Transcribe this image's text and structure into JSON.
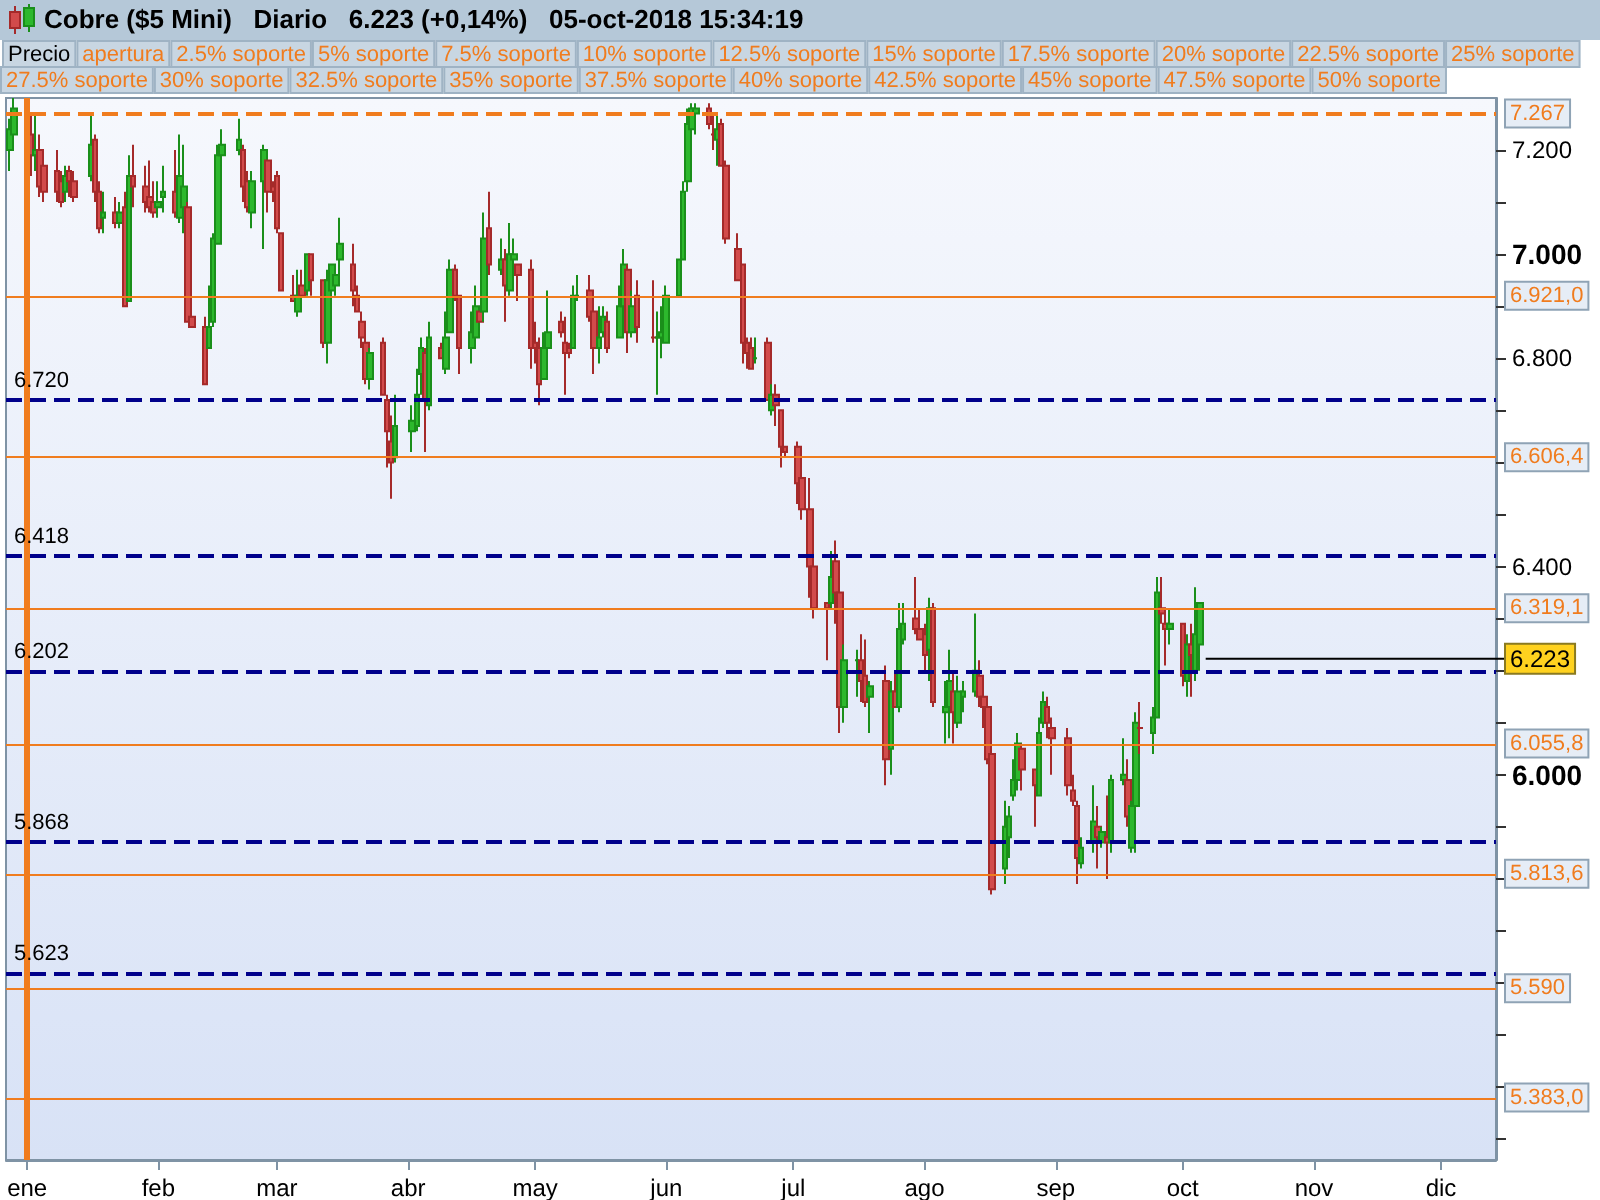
{
  "chart_data": {
    "type": "candlestick",
    "title": "Cobre ($5 Mini)   Diario   6.223 (+0,14%)   05-oct-2018 15:34:19",
    "annotations": [
      "Precio",
      "apertura",
      "2.5% soporte",
      "5% soporte",
      "7.5% soporte",
      "10% soporte",
      "12.5% soporte",
      "15% soporte",
      "17.5% soporte",
      "20% soporte",
      "22.5% soporte",
      "25% soporte",
      "27.5% soporte",
      "30% soporte",
      "32.5% soporte",
      "35% soporte",
      "37.5% soporte",
      "40% soporte",
      "42.5% soporte",
      "45% soporte",
      "47.5% soporte",
      "50% soporte",
      {
        "text": "6.223",
        "x": "2018-10-05",
        "y": 6.223
      }
    ],
    "xlim": [
      "2017-12-27",
      "2018-12-14"
    ],
    "xticks": [
      {
        "value": "2018-01-01",
        "label": "ene"
      },
      {
        "value": "2018-02-01",
        "label": "feb"
      },
      {
        "value": "2018-03-01",
        "label": "mar"
      },
      {
        "value": "2018-04-01",
        "label": "abr"
      },
      {
        "value": "2018-05-01",
        "label": "may"
      },
      {
        "value": "2018-06-01",
        "label": "jun"
      },
      {
        "value": "2018-07-01",
        "label": "jul"
      },
      {
        "value": "2018-08-01",
        "label": "ago"
      },
      {
        "value": "2018-09-01",
        "label": "sep"
      },
      {
        "value": "2018-10-01",
        "label": "oct"
      },
      {
        "value": "2018-11-01",
        "label": "nov"
      },
      {
        "value": "2018-12-01",
        "label": "dic"
      }
    ],
    "ylim": [
      5.26,
      7.3
    ],
    "yticks": [
      {
        "value": 5.3,
        "label": null
      },
      {
        "value": 5.4,
        "label": null
      },
      {
        "value": 5.5,
        "label": null
      },
      {
        "value": 5.6,
        "label": null
      },
      {
        "value": 5.7,
        "label": null
      },
      {
        "value": 5.8,
        "label": null
      },
      {
        "value": 5.9,
        "label": null
      },
      {
        "value": 6,
        "label": "6.000"
      },
      {
        "value": 6.1,
        "label": null
      },
      {
        "value": 6.2,
        "label": null
      },
      {
        "value": 6.3,
        "label": null
      },
      {
        "value": 6.4,
        "label": "6.400"
      },
      {
        "value": 6.5,
        "label": null
      },
      {
        "value": 6.6,
        "label": null
      },
      {
        "value": 6.7,
        "label": null
      },
      {
        "value": 6.8,
        "label": "6.800"
      },
      {
        "value": 6.9,
        "label": null
      },
      {
        "value": 7,
        "label": "7.000"
      },
      {
        "value": 7.1,
        "label": null
      },
      {
        "value": 7.2,
        "label": "7.200"
      }
    ],
    "ref_lines": [
      {
        "axis": "x",
        "value": "2018-01-01",
        "label": null,
        "color": "#f07c1e",
        "line_style": "solid"
      },
      {
        "axis": "y",
        "value": 7.267,
        "label": "7.267",
        "color": "#f07c1e",
        "line_style": "dashed"
      },
      {
        "axis": "y",
        "value": 6.921,
        "label": "6.921,0",
        "color": "#f07c1e",
        "line_style": "solid"
      },
      {
        "axis": "y",
        "value": 6.6064,
        "label": "6.606,4",
        "color": "#f07c1e",
        "line_style": "solid"
      },
      {
        "axis": "y",
        "value": 6.3191,
        "label": "6.319,1",
        "color": "#f07c1e",
        "line_style": "solid"
      },
      {
        "axis": "y",
        "value": 6.0558,
        "label": "6.055,8",
        "color": "#f07c1e",
        "line_style": "solid"
      },
      {
        "axis": "y",
        "value": 5.8136,
        "label": "5.813,6",
        "color": "#f07c1e",
        "line_style": "solid"
      },
      {
        "axis": "y",
        "value": 5.59,
        "label": "5.590",
        "color": "#f07c1e",
        "line_style": "solid"
      },
      {
        "axis": "y",
        "value": 5.383,
        "label": "5.383,0",
        "color": "#f07c1e",
        "line_style": "solid"
      },
      {
        "axis": "y",
        "value": 6.72,
        "label": "6.720",
        "color": "#00008b",
        "line_style": "dashed"
      },
      {
        "axis": "y",
        "value": 6.418,
        "label": "6.418",
        "color": "#00008b",
        "line_style": "dashed"
      },
      {
        "axis": "y",
        "value": 6.202,
        "label": "6.202",
        "color": "#00008b",
        "line_style": "dashed"
      },
      {
        "axis": "y",
        "value": 5.868,
        "label": "5.868",
        "color": "#00008b",
        "line_style": "dashed"
      },
      {
        "axis": "y",
        "value": 5.623,
        "label": "5.623",
        "color": "#00008b",
        "line_style": "dashed"
      }
    ],
    "x": [
      "2017-12-28",
      "2017-12-29",
      "2018-01-02",
      "2018-01-03",
      "2018-01-04",
      "2018-01-05",
      "2018-01-08",
      "2018-01-09",
      "2018-01-10",
      "2018-01-11",
      "2018-01-12",
      "2018-01-16",
      "2018-01-17",
      "2018-01-18",
      "2018-01-19",
      "2018-01-22",
      "2018-01-23",
      "2018-01-24",
      "2018-01-25",
      "2018-01-26",
      "2018-01-29",
      "2018-01-30",
      "2018-01-31",
      "2018-02-01",
      "2018-02-02",
      "2018-02-05",
      "2018-02-06",
      "2018-02-07",
      "2018-02-08",
      "2018-02-09",
      "2018-02-12",
      "2018-02-13",
      "2018-02-14",
      "2018-02-15",
      "2018-02-16",
      "2018-02-20",
      "2018-02-21",
      "2018-02-22",
      "2018-02-23",
      "2018-02-26",
      "2018-02-27",
      "2018-02-28",
      "2018-03-01",
      "2018-03-02",
      "2018-03-05",
      "2018-03-06",
      "2018-03-07",
      "2018-03-08",
      "2018-03-09",
      "2018-03-12",
      "2018-03-13",
      "2018-03-14",
      "2018-03-15",
      "2018-03-16",
      "2018-03-19",
      "2018-03-20",
      "2018-03-21",
      "2018-03-22",
      "2018-03-23",
      "2018-03-26",
      "2018-03-27",
      "2018-03-28",
      "2018-03-29",
      "2018-04-02",
      "2018-04-03",
      "2018-04-04",
      "2018-04-05",
      "2018-04-06",
      "2018-04-09",
      "2018-04-10",
      "2018-04-11",
      "2018-04-12",
      "2018-04-13",
      "2018-04-16",
      "2018-04-17",
      "2018-04-18",
      "2018-04-19",
      "2018-04-20",
      "2018-04-23",
      "2018-04-24",
      "2018-04-25",
      "2018-04-26",
      "2018-04-27",
      "2018-04-30",
      "2018-05-01",
      "2018-05-02",
      "2018-05-03",
      "2018-05-04",
      "2018-05-07",
      "2018-05-08",
      "2018-05-09",
      "2018-05-10",
      "2018-05-11",
      "2018-05-14",
      "2018-05-15",
      "2018-05-16",
      "2018-05-17",
      "2018-05-18",
      "2018-05-21",
      "2018-05-22",
      "2018-05-23",
      "2018-05-24",
      "2018-05-25",
      "2018-05-29",
      "2018-05-30",
      "2018-05-31",
      "2018-06-01",
      "2018-06-04",
      "2018-06-05",
      "2018-06-06",
      "2018-06-07",
      "2018-06-08",
      "2018-06-11",
      "2018-06-12",
      "2018-06-13",
      "2018-06-14",
      "2018-06-15",
      "2018-06-18",
      "2018-06-19",
      "2018-06-20",
      "2018-06-21",
      "2018-06-22",
      "2018-06-25",
      "2018-06-26",
      "2018-06-27",
      "2018-06-28",
      "2018-06-29",
      "2018-07-02",
      "2018-07-03",
      "2018-07-05",
      "2018-07-06",
      "2018-07-09",
      "2018-07-10",
      "2018-07-11",
      "2018-07-12",
      "2018-07-13",
      "2018-07-16",
      "2018-07-17",
      "2018-07-18",
      "2018-07-19",
      "2018-07-23",
      "2018-07-24",
      "2018-07-25",
      "2018-07-26",
      "2018-07-27",
      "2018-07-30",
      "2018-07-31",
      "2018-08-01",
      "2018-08-02",
      "2018-08-03",
      "2018-08-06",
      "2018-08-07",
      "2018-08-08",
      "2018-08-09",
      "2018-08-10",
      "2018-08-13",
      "2018-08-14",
      "2018-08-15",
      "2018-08-16",
      "2018-08-17",
      "2018-08-20",
      "2018-08-21",
      "2018-08-22",
      "2018-08-23",
      "2018-08-24",
      "2018-08-27",
      "2018-08-28",
      "2018-08-29",
      "2018-08-30",
      "2018-08-31",
      "2018-09-04",
      "2018-09-05",
      "2018-09-06",
      "2018-09-07",
      "2018-09-10",
      "2018-09-11",
      "2018-09-12",
      "2018-09-13",
      "2018-09-14",
      "2018-09-17",
      "2018-09-18",
      "2018-09-19",
      "2018-09-20",
      "2018-09-21",
      "2018-09-24",
      "2018-09-25",
      "2018-09-26",
      "2018-09-27",
      "2018-09-28",
      "2018-10-01",
      "2018-10-02",
      "2018-10-03",
      "2018-10-04",
      "2018-10-05"
    ],
    "ohlc": [
      [
        7.2,
        7.26,
        7.16,
        7.24
      ],
      [
        7.23,
        7.3,
        7.22,
        7.28
      ],
      [
        7.23,
        7.27,
        7.15,
        7.19
      ],
      [
        7.19,
        7.27,
        7.16,
        7.2
      ],
      [
        7.2,
        7.23,
        7.11,
        7.13
      ],
      [
        7.17,
        7.2,
        7.1,
        7.12
      ],
      [
        7.16,
        7.2,
        7.1,
        7.12
      ],
      [
        7.14,
        7.16,
        7.09,
        7.1
      ],
      [
        7.12,
        7.17,
        7.1,
        7.15
      ],
      [
        7.16,
        7.17,
        7.11,
        7.14
      ],
      [
        7.14,
        7.16,
        7.1,
        7.11
      ],
      [
        7.15,
        7.27,
        7.14,
        7.21
      ],
      [
        7.22,
        7.23,
        7.1,
        7.12
      ],
      [
        7.12,
        7.14,
        7.04,
        7.05
      ],
      [
        7.07,
        7.12,
        7.04,
        7.08
      ],
      [
        7.08,
        7.11,
        7.05,
        7.06
      ],
      [
        7.06,
        7.1,
        7.05,
        7.08
      ],
      [
        7.09,
        7.12,
        6.9,
        6.9
      ],
      [
        6.91,
        7.19,
        6.91,
        7.15
      ],
      [
        7.15,
        7.21,
        7.09,
        7.13
      ],
      [
        7.13,
        7.17,
        7.08,
        7.1
      ],
      [
        7.11,
        7.18,
        7.08,
        7.09
      ],
      [
        7.1,
        7.14,
        7.07,
        7.08
      ],
      [
        7.09,
        7.14,
        7.07,
        7.1
      ],
      [
        7.11,
        7.17,
        7.08,
        7.12
      ],
      [
        7.12,
        7.2,
        7.07,
        7.08
      ],
      [
        7.07,
        7.23,
        7.06,
        7.15
      ],
      [
        7.09,
        7.21,
        7.04,
        7.13
      ],
      [
        7.09,
        7.1,
        6.87,
        6.87
      ],
      [
        6.88,
        6.94,
        6.86,
        6.86
      ],
      [
        6.86,
        6.88,
        6.75,
        6.75
      ],
      [
        6.82,
        6.94,
        6.82,
        6.86
      ],
      [
        6.87,
        7.04,
        6.86,
        7.03
      ],
      [
        7.02,
        7.21,
        7.02,
        7.19
      ],
      [
        7.19,
        7.24,
        7.17,
        7.21
      ],
      [
        7.2,
        7.26,
        7.19,
        7.22
      ],
      [
        7.2,
        7.21,
        7.1,
        7.13
      ],
      [
        7.14,
        7.16,
        7.08,
        7.09
      ],
      [
        7.08,
        7.16,
        7.05,
        7.14
      ],
      [
        7.14,
        7.21,
        7.01,
        7.2
      ],
      [
        7.18,
        7.18,
        7.08,
        7.12
      ],
      [
        7.13,
        7.14,
        7.1,
        7.12
      ],
      [
        7.15,
        7.16,
        7.04,
        7.05
      ],
      [
        7.04,
        7.04,
        6.93,
        6.93
      ],
      [
        6.92,
        6.96,
        6.91,
        6.91
      ],
      [
        6.89,
        6.97,
        6.88,
        6.92
      ],
      [
        6.94,
        6.97,
        6.92,
        6.92
      ],
      [
        6.93,
        7.0,
        6.92,
        7.0
      ],
      [
        7.0,
        7.0,
        6.92,
        6.95
      ],
      [
        6.95,
        6.95,
        6.82,
        6.83
      ],
      [
        6.83,
        6.97,
        6.79,
        6.95
      ],
      [
        6.93,
        6.98,
        6.92,
        6.98
      ],
      [
        6.94,
        6.96,
        6.92,
        6.96
      ],
      [
        6.99,
        7.07,
        6.94,
        7.02
      ],
      [
        6.98,
        7.02,
        6.9,
        6.93
      ],
      [
        6.92,
        6.94,
        6.89,
        6.89
      ],
      [
        6.87,
        6.89,
        6.82,
        6.84
      ],
      [
        6.83,
        6.84,
        6.75,
        6.76
      ],
      [
        6.76,
        6.82,
        6.74,
        6.81
      ],
      [
        6.83,
        6.84,
        6.73,
        6.73
      ],
      [
        6.72,
        6.73,
        6.59,
        6.66
      ],
      [
        6.64,
        6.69,
        6.53,
        6.6
      ],
      [
        6.61,
        6.73,
        6.6,
        6.67
      ],
      [
        6.66,
        6.71,
        6.62,
        6.68
      ],
      [
        6.67,
        6.78,
        6.66,
        6.73
      ],
      [
        6.77,
        6.84,
        6.73,
        6.82
      ],
      [
        6.81,
        6.82,
        6.62,
        6.72
      ],
      [
        6.71,
        6.87,
        6.7,
        6.84
      ],
      [
        6.82,
        6.83,
        6.8,
        6.8
      ],
      [
        6.78,
        6.89,
        6.77,
        6.84
      ],
      [
        6.85,
        6.99,
        6.85,
        6.97
      ],
      [
        6.97,
        6.98,
        6.91,
        6.92
      ],
      [
        6.92,
        6.92,
        6.77,
        6.82
      ],
      [
        6.82,
        6.89,
        6.79,
        6.85
      ],
      [
        6.84,
        6.94,
        6.84,
        6.9
      ],
      [
        6.89,
        6.89,
        6.87,
        6.87
      ],
      [
        6.89,
        7.08,
        6.87,
        7.03
      ],
      [
        7.05,
        7.12,
        6.96,
        6.98
      ],
      [
        6.97,
        7.03,
        6.96,
        6.99
      ],
      [
        6.99,
        7.01,
        6.87,
        6.94
      ],
      [
        6.93,
        7.06,
        6.92,
        7.0
      ],
      [
        6.99,
        7.03,
        6.93,
        7.0
      ],
      [
        6.98,
        6.98,
        6.91,
        6.96
      ],
      [
        6.97,
        6.99,
        6.78,
        6.82
      ],
      [
        6.83,
        6.87,
        6.79,
        6.82
      ],
      [
        6.82,
        6.84,
        6.71,
        6.75
      ],
      [
        6.76,
        6.85,
        6.76,
        6.82
      ],
      [
        6.82,
        6.93,
        6.78,
        6.85
      ],
      [
        6.87,
        6.89,
        6.84,
        6.85
      ],
      [
        6.83,
        6.88,
        6.73,
        6.81
      ],
      [
        6.82,
        6.83,
        6.8,
        6.81
      ],
      [
        6.82,
        6.94,
        6.82,
        6.92
      ],
      [
        6.92,
        6.96,
        6.91,
        6.92
      ],
      [
        6.93,
        6.96,
        6.87,
        6.88
      ],
      [
        6.89,
        6.89,
        6.77,
        6.82
      ],
      [
        6.82,
        6.9,
        6.79,
        6.84
      ],
      [
        6.85,
        6.9,
        6.84,
        6.88
      ],
      [
        6.87,
        6.89,
        6.81,
        6.82
      ],
      [
        6.84,
        6.94,
        6.84,
        6.9
      ],
      [
        6.9,
        7.01,
        6.89,
        6.98
      ],
      [
        6.97,
        6.98,
        6.81,
        6.85
      ],
      [
        6.85,
        6.93,
        6.84,
        6.9
      ],
      [
        6.92,
        6.95,
        6.83,
        6.86
      ],
      [
        6.84,
        6.95,
        6.83,
        6.84
      ],
      [
        6.84,
        6.89,
        6.73,
        6.84
      ],
      [
        6.84,
        6.9,
        6.8,
        6.85
      ],
      [
        6.83,
        6.94,
        6.83,
        6.92
      ],
      [
        6.92,
        6.99,
        6.92,
        6.99
      ],
      [
        6.99,
        7.14,
        6.99,
        7.12
      ],
      [
        7.14,
        7.28,
        7.12,
        7.25
      ],
      [
        7.24,
        7.29,
        7.24,
        7.28
      ],
      [
        7.27,
        7.29,
        7.23,
        7.28
      ],
      [
        7.28,
        7.29,
        7.24,
        7.25
      ],
      [
        7.23,
        7.27,
        7.2,
        7.23
      ],
      [
        7.22,
        7.27,
        7.17,
        7.24
      ],
      [
        7.25,
        7.26,
        7.17,
        7.17
      ],
      [
        7.17,
        7.18,
        7.02,
        7.03
      ],
      [
        7.01,
        7.04,
        6.95,
        6.95
      ],
      [
        6.98,
        6.98,
        6.79,
        6.83
      ],
      [
        6.83,
        6.84,
        6.78,
        6.81
      ],
      [
        6.82,
        6.84,
        6.78,
        6.78
      ],
      [
        6.8,
        6.84,
        6.79,
        6.8
      ],
      [
        6.83,
        6.84,
        6.72,
        6.72
      ],
      [
        6.7,
        6.75,
        6.69,
        6.73
      ],
      [
        6.73,
        6.75,
        6.67,
        6.71
      ],
      [
        6.7,
        6.7,
        6.59,
        6.63
      ],
      [
        6.63,
        6.63,
        6.61,
        6.62
      ],
      [
        6.63,
        6.64,
        6.52,
        6.56
      ],
      [
        6.57,
        6.61,
        6.49,
        6.51
      ],
      [
        6.51,
        6.57,
        6.34,
        6.4
      ],
      [
        6.4,
        6.43,
        6.3,
        6.32
      ],
      [
        6.33,
        6.33,
        6.22,
        6.32
      ],
      [
        6.33,
        6.43,
        6.32,
        6.38
      ],
      [
        6.41,
        6.45,
        6.29,
        6.35
      ],
      [
        6.35,
        6.35,
        6.08,
        6.13
      ],
      [
        6.13,
        6.25,
        6.1,
        6.22
      ],
      [
        6.22,
        6.24,
        6.15,
        6.22
      ],
      [
        6.22,
        6.27,
        6.14,
        6.18
      ],
      [
        6.19,
        6.26,
        6.13,
        6.14
      ],
      [
        6.15,
        6.18,
        6.08,
        6.17
      ],
      [
        6.18,
        6.21,
        5.98,
        6.03
      ],
      [
        6.05,
        6.18,
        6.0,
        6.16
      ],
      [
        6.16,
        6.2,
        6.13,
        6.13
      ],
      [
        6.13,
        6.33,
        6.12,
        6.28
      ],
      [
        6.26,
        6.33,
        6.25,
        6.29
      ],
      [
        6.3,
        6.38,
        6.27,
        6.28
      ],
      [
        6.28,
        6.32,
        6.26,
        6.26
      ],
      [
        6.27,
        6.29,
        6.2,
        6.23
      ],
      [
        6.24,
        6.34,
        6.18,
        6.32
      ],
      [
        6.32,
        6.33,
        6.13,
        6.14
      ],
      [
        6.12,
        6.18,
        6.06,
        6.13
      ],
      [
        6.13,
        6.24,
        6.07,
        6.18
      ],
      [
        6.16,
        6.2,
        6.06,
        6.12
      ],
      [
        6.1,
        6.19,
        6.09,
        6.16
      ],
      [
        6.15,
        6.18,
        6.12,
        6.16
      ],
      [
        6.16,
        6.31,
        6.15,
        6.2
      ],
      [
        6.19,
        6.22,
        6.13,
        6.15
      ],
      [
        6.15,
        6.18,
        6.09,
        6.13
      ],
      [
        6.13,
        6.13,
        6.02,
        6.03
      ],
      [
        6.04,
        6.04,
        5.77,
        5.78
      ],
      [
        5.82,
        5.95,
        5.79,
        5.9
      ],
      [
        5.88,
        5.94,
        5.84,
        5.92
      ],
      [
        5.96,
        6.03,
        5.95,
        5.99
      ],
      [
        5.99,
        6.08,
        5.97,
        6.06
      ],
      [
        6.05,
        6.06,
        5.97,
        6.01
      ],
      [
        6.01,
        6.01,
        5.9,
        5.98
      ],
      [
        5.96,
        6.11,
        5.96,
        6.08
      ],
      [
        6.1,
        6.16,
        6.09,
        6.14
      ],
      [
        6.13,
        6.15,
        6.07,
        6.1
      ],
      [
        6.09,
        6.11,
        6.0,
        6.07
      ],
      [
        6.07,
        6.09,
        5.96,
        5.98
      ],
      [
        5.97,
        6.0,
        5.94,
        5.95
      ],
      [
        5.94,
        5.95,
        5.79,
        5.84
      ],
      [
        5.83,
        5.88,
        5.82,
        5.86
      ],
      [
        5.87,
        5.98,
        5.85,
        5.91
      ],
      [
        5.9,
        5.94,
        5.82,
        5.88
      ],
      [
        5.87,
        5.9,
        5.86,
        5.89
      ],
      [
        5.88,
        5.96,
        5.8,
        5.87
      ],
      [
        5.87,
        6.0,
        5.85,
        5.99
      ],
      [
        5.99,
        6.07,
        5.98,
        6.0
      ],
      [
        5.99,
        6.03,
        5.9,
        5.92
      ],
      [
        5.86,
        5.95,
        5.85,
        5.94
      ],
      [
        5.94,
        6.12,
        5.85,
        6.1
      ],
      [
        6.09,
        6.14,
        6.04,
        6.09
      ],
      [
        6.08,
        6.13,
        6.04,
        6.11
      ],
      [
        6.11,
        6.38,
        6.11,
        6.35
      ],
      [
        6.32,
        6.38,
        6.29,
        6.31
      ],
      [
        6.29,
        6.32,
        6.21,
        6.28
      ],
      [
        6.28,
        6.32,
        6.25,
        6.29
      ],
      [
        6.29,
        6.29,
        6.17,
        6.19
      ],
      [
        6.18,
        6.27,
        6.15,
        6.25
      ],
      [
        6.25,
        6.29,
        6.15,
        6.23
      ],
      [
        6.2,
        6.36,
        6.18,
        6.27
      ],
      [
        6.25,
        6.33,
        6.2,
        6.33
      ]
    ]
  }
}
